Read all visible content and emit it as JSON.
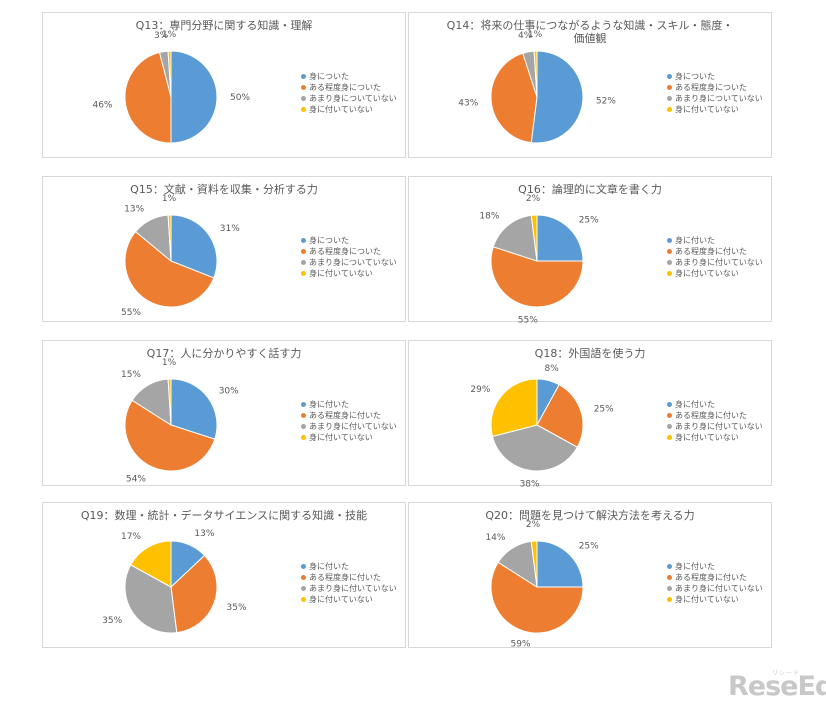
{
  "colors": {
    "s1": "#5b9bd5",
    "s2": "#ed7d31",
    "s3": "#a5a5a5",
    "s4": "#ffc000"
  },
  "chart_data": [
    {
      "type": "pie",
      "title": "Q13：専門分野に関する知識・理解",
      "categories": [
        "身についた",
        "ある程度身についた",
        "あまり身についていない",
        "身に付いていない"
      ],
      "values": [
        50,
        46,
        3,
        1
      ],
      "labels": [
        "50%",
        "46%",
        "3%",
        "1%"
      ]
    },
    {
      "type": "pie",
      "title": "Q14：将来の仕事につながるような知識・スキル・態度・\n価値観",
      "categories": [
        "身についた",
        "ある程度身についた",
        "あまり身についていない",
        "身に付いていない"
      ],
      "values": [
        52,
        43,
        4,
        1
      ],
      "labels": [
        "52%",
        "43%",
        "4%",
        "1%"
      ]
    },
    {
      "type": "pie",
      "title": "Q15：文献・資料を収集・分析する力",
      "categories": [
        "身についた",
        "ある程度身についた",
        "あまり身についていない",
        "身に付いていない"
      ],
      "values": [
        31,
        55,
        13,
        1
      ],
      "labels": [
        "31%",
        "55%",
        "13%",
        "1%"
      ]
    },
    {
      "type": "pie",
      "title": "Q16：論理的に文章を書く力",
      "categories": [
        "身に付いた",
        "ある程度身に付いた",
        "あまり身に付いていない",
        "身に付いていない"
      ],
      "values": [
        25,
        55,
        18,
        2
      ],
      "labels": [
        "25%",
        "55%",
        "18%",
        "2%"
      ]
    },
    {
      "type": "pie",
      "title": "Q17：人に分かりやすく話す力",
      "categories": [
        "身に付いた",
        "ある程度身に付いた",
        "あまり身に付いていない",
        "身に付いていない"
      ],
      "values": [
        30,
        54,
        15,
        1
      ],
      "labels": [
        "30%",
        "54%",
        "15%",
        "1%"
      ]
    },
    {
      "type": "pie",
      "title": "Q18：外国語を使う力",
      "categories": [
        "身に付いた",
        "ある程度身に付いた",
        "あまり身に付いていない",
        "身に付いていない"
      ],
      "values": [
        8,
        25,
        38,
        29
      ],
      "labels": [
        "8%",
        "25%",
        "38%",
        "29%"
      ]
    },
    {
      "type": "pie",
      "title": "Q19：数理・統計・データサイエンスに関する知識・技能",
      "categories": [
        "身に付いた",
        "ある程度身に付いた",
        "あまり身に付いていない",
        "身に付いていない"
      ],
      "values": [
        13,
        35,
        35,
        17
      ],
      "labels": [
        "13%",
        "35%",
        "35%",
        "17%"
      ]
    },
    {
      "type": "pie",
      "title": "Q20：問題を見つけて解決方法を考える力",
      "categories": [
        "身に付いた",
        "ある程度身に付いた",
        "あまり身に付いていない",
        "身に付いていない"
      ],
      "values": [
        25,
        59,
        14,
        2
      ],
      "labels": [
        "25%",
        "59%",
        "14%",
        "2%"
      ]
    }
  ],
  "logo": {
    "text": "ReseEd",
    "small": "リシード"
  }
}
